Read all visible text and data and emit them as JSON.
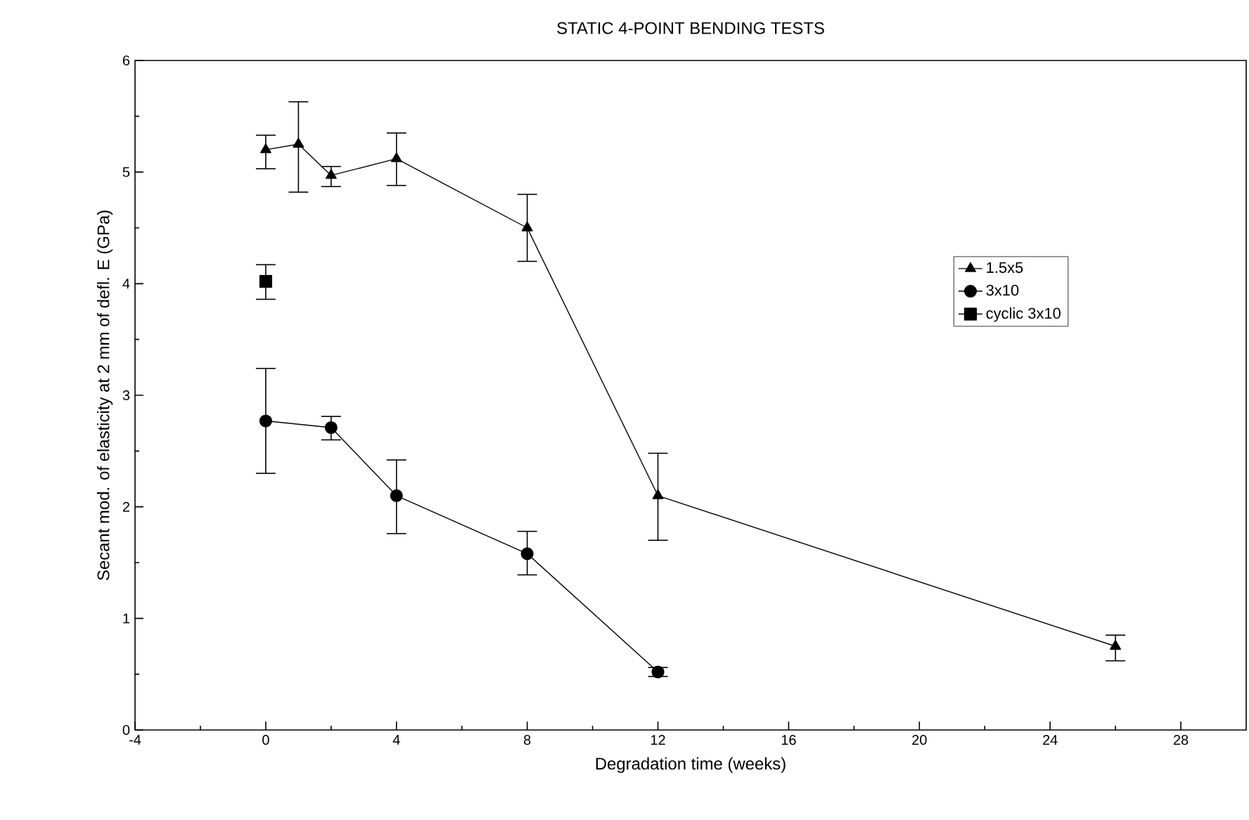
{
  "chart_data": {
    "type": "line",
    "title": "STATIC 4-POINT BENDING TESTS",
    "xlabel": "Degradation time (weeks)",
    "ylabel": "Secant mod. of elasticity at 2 mm of defl. E (GPa)",
    "xlim": [
      -4,
      30
    ],
    "xticks": [
      -4,
      0,
      4,
      8,
      12,
      16,
      20,
      24,
      28
    ],
    "ylim": [
      0,
      6
    ],
    "yticks": [
      0,
      1,
      2,
      3,
      4,
      5,
      6
    ],
    "grid": false,
    "legend": "right",
    "series": [
      {
        "name": "1.5x5",
        "color": "#000000",
        "marker": "triangle",
        "x": [
          0,
          1,
          2,
          4,
          8,
          12,
          26
        ],
        "values": [
          5.2,
          5.25,
          4.97,
          5.12,
          4.5,
          2.1,
          0.75
        ],
        "errors": [
          [
            5.03,
            5.33
          ],
          [
            4.82,
            5.63
          ],
          [
            4.87,
            5.05
          ],
          [
            4.88,
            5.35
          ],
          [
            4.2,
            4.8
          ],
          [
            1.7,
            2.48
          ],
          [
            0.62,
            0.85
          ]
        ]
      },
      {
        "name": "3x10",
        "color": "#000000",
        "marker": "circle",
        "x": [
          0,
          2,
          4,
          8,
          12
        ],
        "values": [
          2.77,
          2.71,
          2.1,
          1.58,
          0.52
        ],
        "errors": [
          [
            2.3,
            3.24
          ],
          [
            2.6,
            2.81
          ],
          [
            1.76,
            2.42
          ],
          [
            1.39,
            1.78
          ],
          [
            0.48,
            0.56
          ]
        ]
      },
      {
        "name": "cyclic 3x10",
        "color": "#000000",
        "marker": "square",
        "x": [
          0
        ],
        "values": [
          4.02
        ],
        "errors": [
          [
            3.86,
            4.17
          ]
        ]
      }
    ]
  }
}
